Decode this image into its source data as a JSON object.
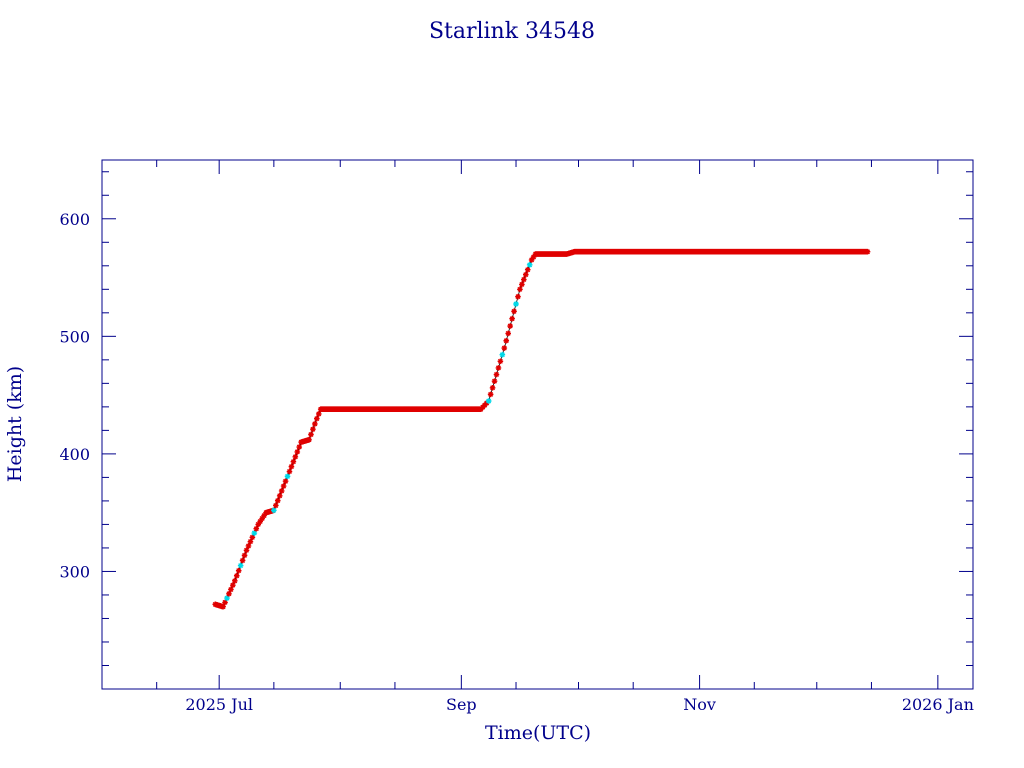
{
  "chart_data": {
    "type": "scatter",
    "title": "Starlink 34548",
    "xlabel": "Time(UTC)",
    "ylabel": "Height (km)",
    "xlim": [
      "2025-06-01",
      "2026-01-10"
    ],
    "ylim": [
      200,
      650
    ],
    "x_ticks": [
      {
        "date": "2025-07-01",
        "label": "2025 Jul"
      },
      {
        "date": "2025-09-01",
        "label": "Sep"
      },
      {
        "date": "2025-11-01",
        "label": "Nov"
      },
      {
        "date": "2026-01-01",
        "label": "2026 Jan"
      }
    ],
    "y_ticks": [
      300,
      400,
      500,
      600
    ],
    "grid": false,
    "legend": "none",
    "colors": {
      "axes": "#00008b",
      "points": "#e00000",
      "highlight_points": "#00d8e8",
      "trace": "#000000"
    },
    "series": [
      {
        "points": [
          [
            "2025-06-30",
            272
          ],
          [
            "2025-07-02",
            270
          ],
          [
            "2025-07-05",
            292
          ],
          [
            "2025-07-08",
            318
          ],
          [
            "2025-07-11",
            340
          ],
          [
            "2025-07-13",
            350
          ],
          [
            "2025-07-15",
            352
          ],
          [
            "2025-07-19",
            385
          ],
          [
            "2025-07-22",
            410
          ],
          [
            "2025-07-24",
            412
          ],
          [
            "2025-07-26",
            430
          ],
          [
            "2025-07-27",
            438
          ],
          [
            "2025-08-10",
            438
          ],
          [
            "2025-08-25",
            438
          ],
          [
            "2025-09-06",
            438
          ],
          [
            "2025-09-08",
            445
          ],
          [
            "2025-09-12",
            490
          ],
          [
            "2025-09-16",
            540
          ],
          [
            "2025-09-19",
            565
          ],
          [
            "2025-09-20",
            570
          ],
          [
            "2025-09-28",
            570
          ],
          [
            "2025-09-30",
            572
          ],
          [
            "2025-10-15",
            572
          ],
          [
            "2025-11-01",
            572
          ],
          [
            "2025-11-15",
            572
          ],
          [
            "2025-12-01",
            572
          ],
          [
            "2025-12-14",
            572
          ]
        ]
      }
    ]
  }
}
